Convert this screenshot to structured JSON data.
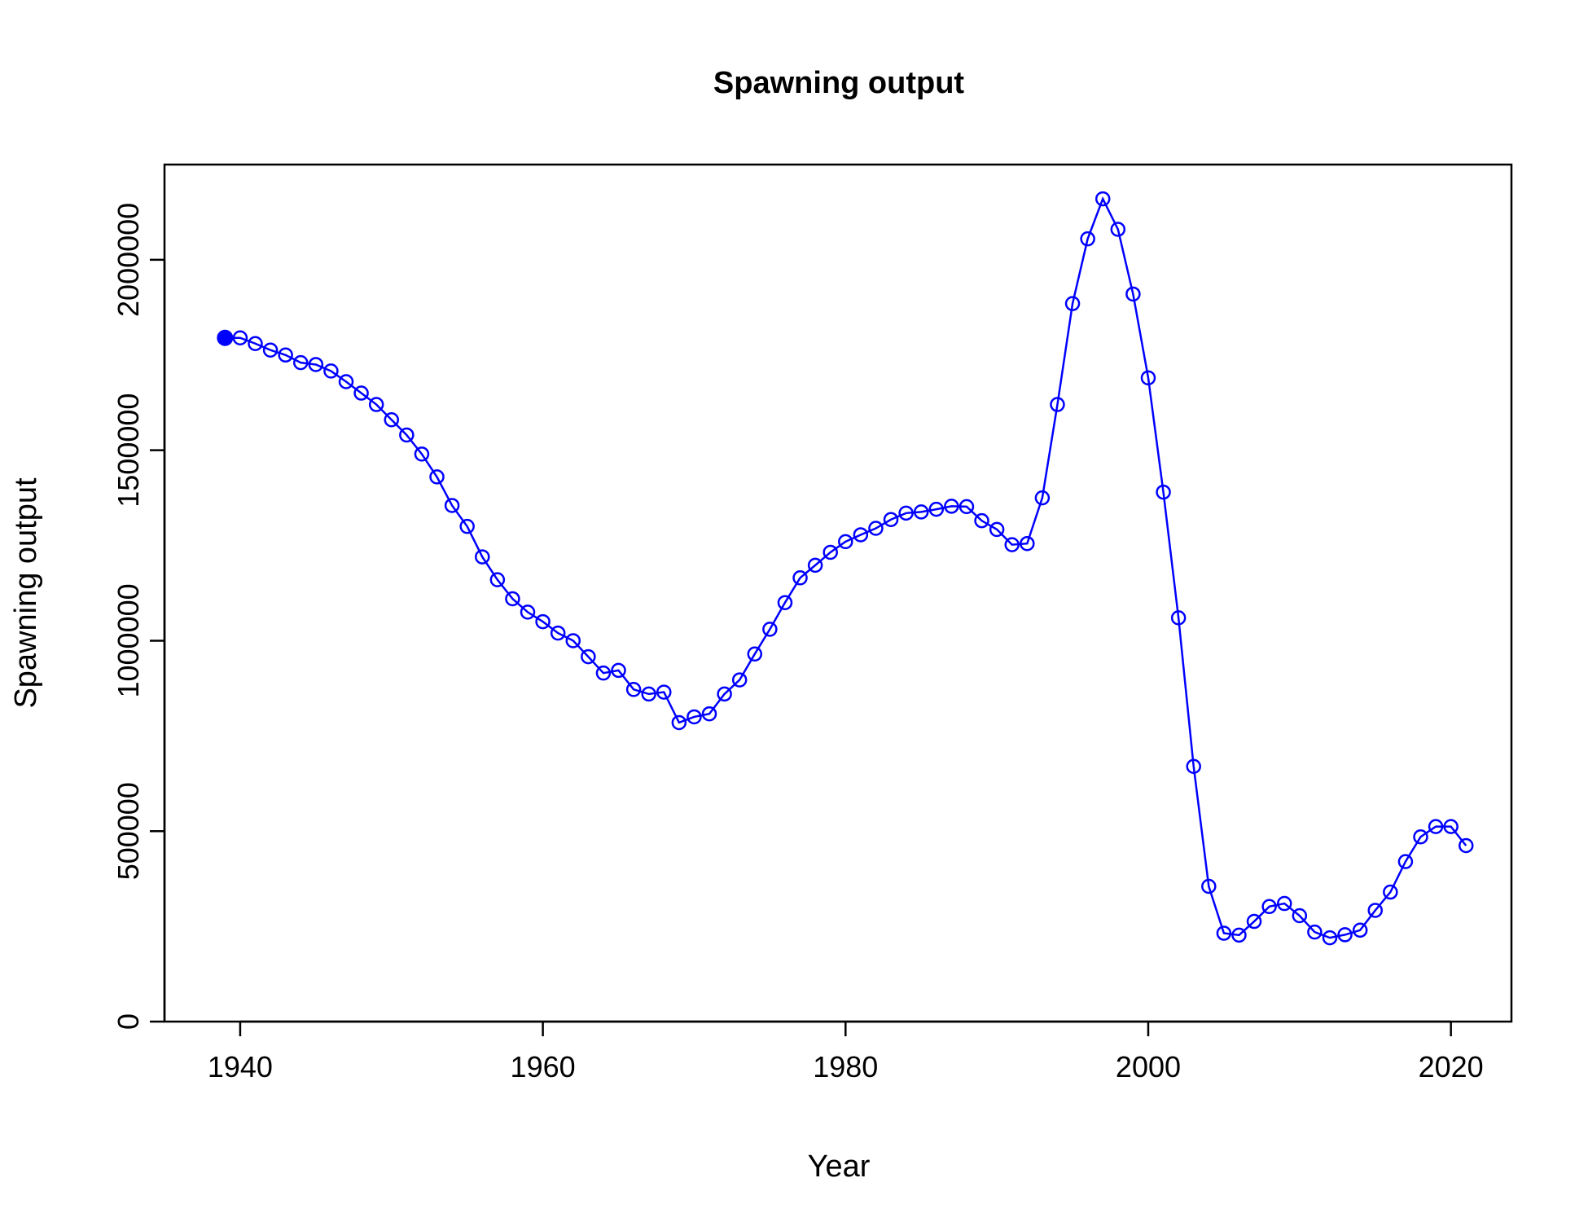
{
  "chart_data": {
    "type": "line",
    "title": "Spawning output",
    "xlabel": "Year",
    "ylabel": "Spawning output",
    "xlim": [
      1935,
      2024
    ],
    "ylim": [
      0,
      2250000
    ],
    "xticks": [
      1940,
      1960,
      1980,
      2000,
      2020
    ],
    "xtick_labels": [
      "1940",
      "1960",
      "1980",
      "2000",
      "2020"
    ],
    "yticks": [
      0,
      500000,
      1000000,
      1500000,
      2000000
    ],
    "ytick_labels": [
      "0",
      "500000",
      "1000000",
      "1500000",
      "2000000"
    ],
    "grid": false,
    "legend": "none",
    "colors": {
      "series": "#0000ff",
      "axis": "#000000",
      "background": "#ffffff"
    },
    "initial_point": {
      "x": 1939,
      "y": 1795000,
      "marker": "filled-circle"
    },
    "series": [
      {
        "marker": "open-circle",
        "x": [
          1940,
          1941,
          1942,
          1943,
          1944,
          1945,
          1946,
          1947,
          1948,
          1949,
          1950,
          1951,
          1952,
          1953,
          1954,
          1955,
          1956,
          1957,
          1958,
          1959,
          1960,
          1961,
          1962,
          1963,
          1964,
          1965,
          1966,
          1967,
          1968,
          1969,
          1970,
          1971,
          1972,
          1973,
          1974,
          1975,
          1976,
          1977,
          1978,
          1979,
          1980,
          1981,
          1982,
          1983,
          1984,
          1985,
          1986,
          1987,
          1988,
          1989,
          1990,
          1991,
          1992,
          1993,
          1994,
          1995,
          1996,
          1997,
          1998,
          1999,
          2000,
          2001,
          2002,
          2003,
          2004,
          2005,
          2006,
          2007,
          2008,
          2009,
          2010,
          2011,
          2012,
          2013,
          2014,
          2015,
          2016,
          2017,
          2018,
          2019,
          2020,
          2021
        ],
        "y": [
          1795000,
          1780000,
          1763000,
          1750000,
          1730000,
          1725000,
          1708000,
          1680000,
          1650000,
          1620000,
          1580000,
          1540000,
          1490000,
          1430000,
          1355000,
          1300000,
          1220000,
          1160000,
          1110000,
          1075000,
          1050000,
          1020000,
          1000000,
          958000,
          915000,
          922000,
          872000,
          860000,
          865000,
          785000,
          800000,
          808000,
          860000,
          897000,
          965000,
          1030000,
          1100000,
          1165000,
          1198000,
          1232000,
          1260000,
          1278000,
          1295000,
          1318000,
          1335000,
          1338000,
          1345000,
          1353000,
          1352000,
          1315000,
          1292000,
          1252000,
          1255000,
          1375000,
          1620000,
          1885000,
          2055000,
          2160000,
          2080000,
          1910000,
          1690000,
          1390000,
          1060000,
          670000,
          355000,
          232000,
          227000,
          263000,
          302000,
          310000,
          278000,
          235000,
          220000,
          228000,
          240000,
          292000,
          340000,
          420000,
          485000,
          512000,
          512000,
          462000
        ]
      }
    ]
  }
}
